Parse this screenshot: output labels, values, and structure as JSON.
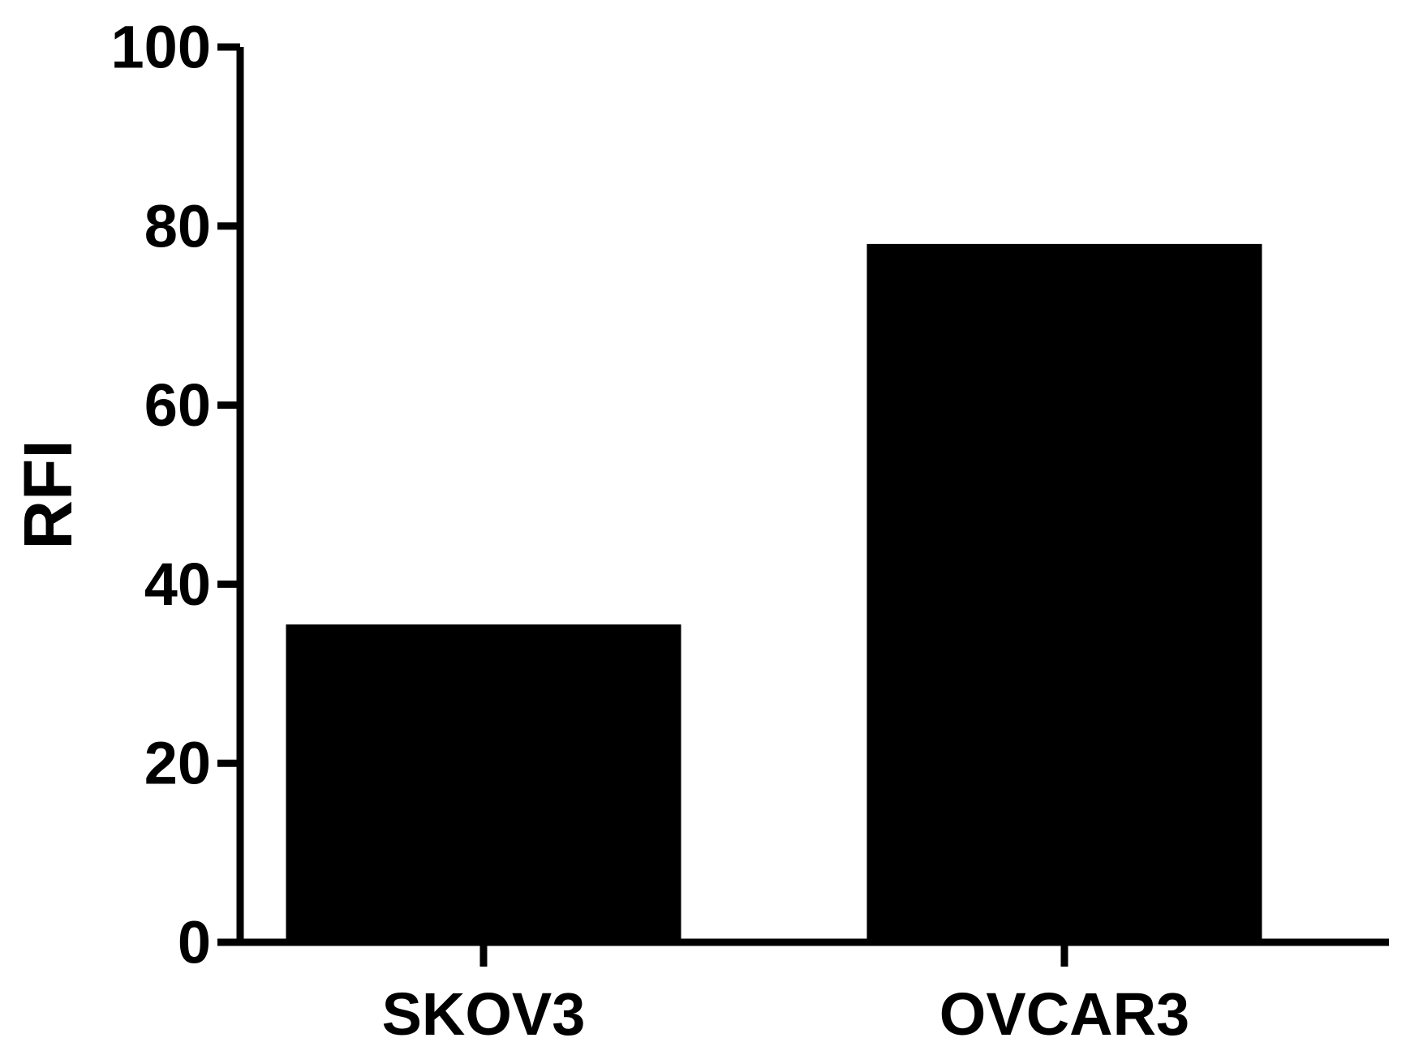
{
  "chart_data": {
    "type": "bar",
    "title": "",
    "xlabel": "",
    "ylabel": "RFI",
    "categories": [
      "SKOV3",
      "OVCAR3"
    ],
    "values": [
      35.5,
      78
    ],
    "ylim": [
      0,
      100
    ],
    "yticks": [
      0,
      20,
      40,
      60,
      80,
      100
    ],
    "ytick_labels": [
      "0",
      "20",
      "40",
      "60",
      "80",
      "100"
    ],
    "grid": false,
    "legend": "none",
    "bar_color": "#000000",
    "axis_color": "#000000"
  }
}
